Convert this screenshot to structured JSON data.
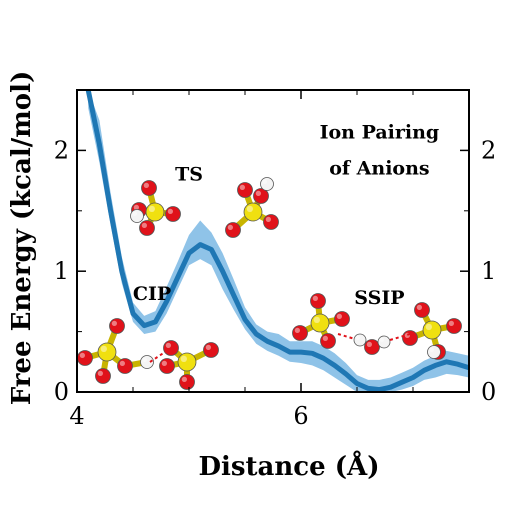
{
  "chart_data": {
    "type": "line",
    "title": "",
    "xlabel": "Distance (Å)",
    "ylabel": "Free Energy (kcal/mol)",
    "xlim": [
      4.0,
      7.5
    ],
    "ylim": [
      0,
      2.5
    ],
    "x_ticks": [
      4,
      6
    ],
    "x_tick_labels": [
      "4",
      "6"
    ],
    "y_ticks": [
      0,
      1,
      2
    ],
    "y_tick_labels": [
      "0",
      "1",
      "2"
    ],
    "right_axis_tick_labels": [
      "0",
      "1",
      "2"
    ],
    "grid": false,
    "line_color": "#1f77b4",
    "band_color": "#8fc3e8",
    "series": [
      {
        "x": [
          4.1,
          4.2,
          4.3,
          4.4,
          4.5,
          4.6,
          4.7,
          4.8,
          4.9,
          5.0,
          5.1,
          5.2,
          5.3,
          5.4,
          5.5,
          5.6,
          5.7,
          5.8,
          5.9,
          6.0,
          6.1,
          6.2,
          6.3,
          6.4,
          6.5,
          6.6,
          6.7,
          6.8,
          6.9,
          7.0,
          7.1,
          7.2,
          7.3,
          7.4,
          7.5
        ],
        "y": [
          2.5,
          2.05,
          1.5,
          1.0,
          0.65,
          0.55,
          0.58,
          0.75,
          0.95,
          1.15,
          1.22,
          1.18,
          1.0,
          0.8,
          0.6,
          0.48,
          0.42,
          0.38,
          0.33,
          0.33,
          0.32,
          0.28,
          0.22,
          0.15,
          0.07,
          0.03,
          0.02,
          0.04,
          0.08,
          0.12,
          0.18,
          0.22,
          0.25,
          0.23,
          0.2
        ],
        "band_low": [
          2.35,
          1.9,
          1.38,
          0.9,
          0.58,
          0.48,
          0.5,
          0.65,
          0.85,
          1.05,
          1.1,
          1.05,
          0.85,
          0.68,
          0.52,
          0.4,
          0.34,
          0.3,
          0.25,
          0.24,
          0.22,
          0.18,
          0.12,
          0.06,
          0.0,
          0.0,
          0.0,
          0.0,
          0.02,
          0.05,
          0.1,
          0.12,
          0.15,
          0.14,
          0.12
        ],
        "band_high": [
          2.5,
          2.25,
          1.65,
          1.12,
          0.74,
          0.63,
          0.67,
          0.87,
          1.08,
          1.3,
          1.42,
          1.32,
          1.15,
          0.93,
          0.7,
          0.56,
          0.5,
          0.48,
          0.42,
          0.42,
          0.42,
          0.38,
          0.32,
          0.24,
          0.14,
          0.1,
          0.1,
          0.12,
          0.16,
          0.2,
          0.26,
          0.3,
          0.34,
          0.32,
          0.3
        ]
      }
    ],
    "annotations": [
      {
        "text": "Ion Pairing",
        "x": 6.7,
        "y": 2.1
      },
      {
        "text": "of Anions",
        "x": 6.7,
        "y": 1.8
      },
      {
        "text": "TS",
        "x": 5.0,
        "y": 1.75
      },
      {
        "text": "CIP",
        "x": 4.67,
        "y": 0.76
      },
      {
        "text": "SSIP",
        "x": 6.7,
        "y": 0.73
      }
    ],
    "molecule_color_sulfur": "#f0e010",
    "molecule_color_oxygen": "#e0121a",
    "molecule_color_hydrogen": "#f4f4f4"
  }
}
